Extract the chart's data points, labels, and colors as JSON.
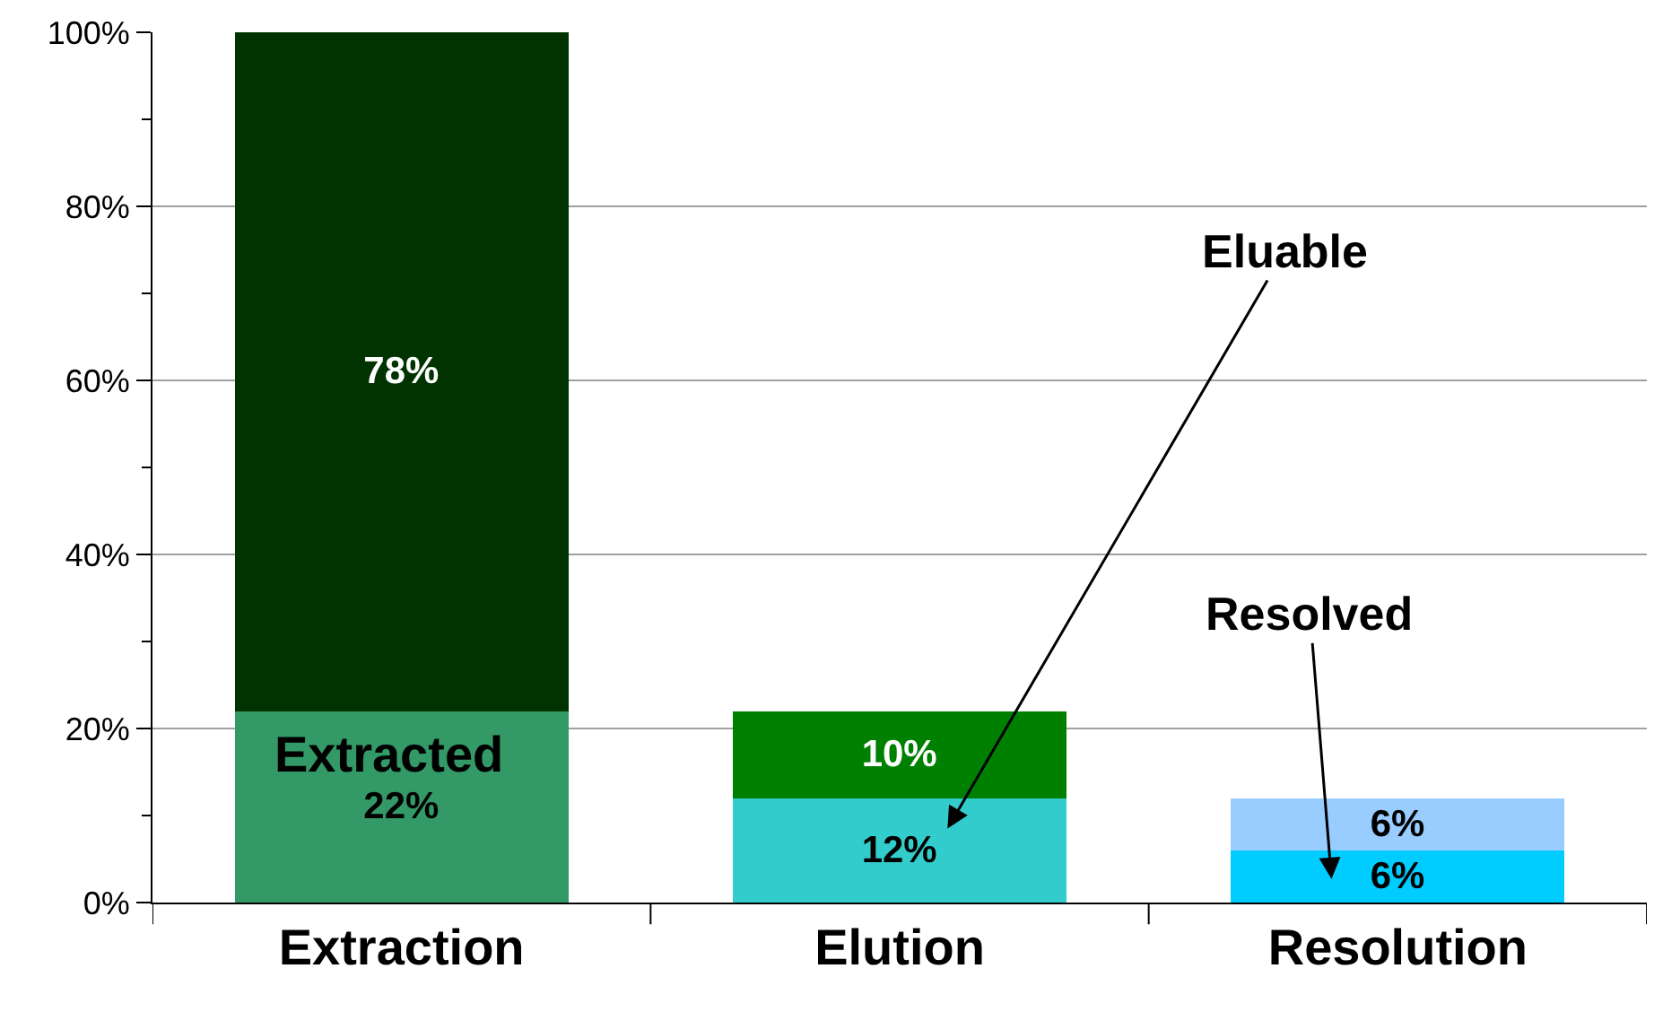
{
  "chart_data": {
    "type": "bar",
    "stacked": true,
    "categories": [
      "Extraction",
      "Elution",
      "Resolution"
    ],
    "series": [
      {
        "colors": [
          "#339966",
          "#33cccc",
          "#00ccff"
        ],
        "values": [
          22,
          12,
          6
        ],
        "value_labels": [
          "22%",
          "12%",
          "6%"
        ]
      },
      {
        "colors": [
          "#003300",
          "#008000",
          "#99ccff"
        ],
        "values": [
          78,
          10,
          6
        ],
        "value_labels": [
          "78%",
          "10%",
          "6%"
        ]
      }
    ],
    "ylim": [
      0,
      100
    ],
    "yticks": [
      {
        "value": 0,
        "label": "0%"
      },
      {
        "value": 10,
        "label": null
      },
      {
        "value": 20,
        "label": "20%"
      },
      {
        "value": 30,
        "label": null
      },
      {
        "value": 40,
        "label": "40%"
      },
      {
        "value": 50,
        "label": null
      },
      {
        "value": 60,
        "label": "60%"
      },
      {
        "value": 70,
        "label": null
      },
      {
        "value": 80,
        "label": "80%"
      },
      {
        "value": 90,
        "label": null
      },
      {
        "value": 100,
        "label": "100%"
      }
    ],
    "grid": "y",
    "annotations": [
      "Extracted",
      "Eluable",
      "Resolved"
    ]
  }
}
